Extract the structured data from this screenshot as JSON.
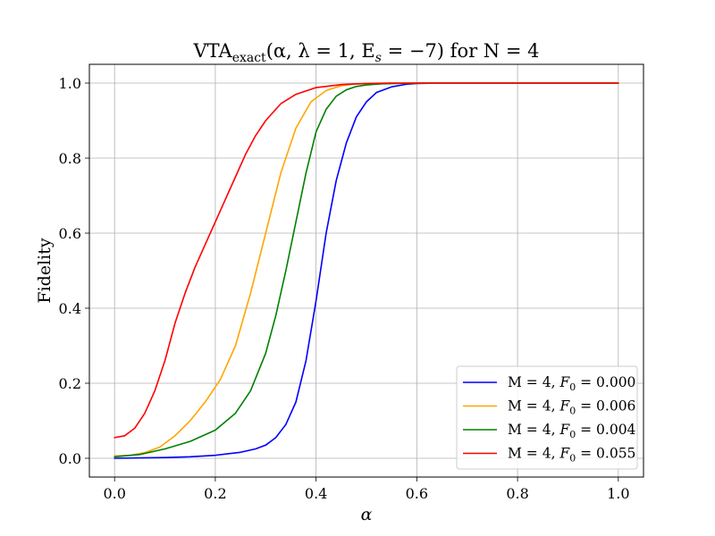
{
  "chart_data": {
    "type": "line",
    "title": {
      "prefix": "VTA",
      "subscript": "exact",
      "params": "(α, λ = 1, E",
      "params_sub": "s",
      "params_end": " = −7) for N = 4"
    },
    "xlabel": "α",
    "ylabel": "Fidelity",
    "xlim": [
      -0.05,
      1.05
    ],
    "ylim": [
      -0.05,
      1.05
    ],
    "xticks": [
      0.0,
      0.2,
      0.4,
      0.6,
      0.8,
      1.0
    ],
    "xtick_labels": [
      "0.0",
      "0.2",
      "0.4",
      "0.6",
      "0.8",
      "1.0"
    ],
    "yticks": [
      0.0,
      0.2,
      0.4,
      0.6,
      0.8,
      1.0
    ],
    "ytick_labels": [
      "0.0",
      "0.2",
      "0.4",
      "0.6",
      "0.8",
      "1.0"
    ],
    "grid": true,
    "legend_position": "lower-right",
    "series": [
      {
        "name": "M =  4, F₀ = 0.000",
        "legend_prefix": "M =  4, ",
        "legend_value": " = 0.000",
        "color": "#0000ff",
        "x": [
          0.0,
          0.05,
          0.1,
          0.15,
          0.2,
          0.25,
          0.28,
          0.3,
          0.32,
          0.34,
          0.36,
          0.38,
          0.4,
          0.42,
          0.44,
          0.46,
          0.48,
          0.5,
          0.52,
          0.55,
          0.58,
          0.6,
          0.65,
          0.7,
          0.8,
          1.0
        ],
        "y": [
          0.0,
          0.001,
          0.002,
          0.004,
          0.008,
          0.016,
          0.025,
          0.035,
          0.055,
          0.09,
          0.15,
          0.26,
          0.42,
          0.6,
          0.74,
          0.84,
          0.91,
          0.95,
          0.975,
          0.99,
          0.997,
          0.999,
          1.0,
          1.0,
          1.0,
          1.0
        ]
      },
      {
        "name": "M =  4, F₀ = 0.006",
        "legend_prefix": "M =  4, ",
        "legend_value": " = 0.006",
        "color": "#ffa500",
        "x": [
          0.0,
          0.03,
          0.06,
          0.09,
          0.12,
          0.15,
          0.18,
          0.21,
          0.24,
          0.27,
          0.3,
          0.33,
          0.36,
          0.39,
          0.42,
          0.45,
          0.48,
          0.51,
          0.55,
          0.6,
          0.7,
          0.8,
          1.0
        ],
        "y": [
          0.006,
          0.008,
          0.015,
          0.03,
          0.06,
          0.1,
          0.15,
          0.21,
          0.3,
          0.44,
          0.6,
          0.76,
          0.88,
          0.95,
          0.98,
          0.993,
          0.998,
          0.999,
          1.0,
          1.0,
          1.0,
          1.0,
          1.0
        ]
      },
      {
        "name": "M =  4, F₀ = 0.004",
        "legend_prefix": "M =  4, ",
        "legend_value": " = 0.004",
        "color": "#008000",
        "x": [
          0.0,
          0.05,
          0.1,
          0.15,
          0.2,
          0.24,
          0.27,
          0.3,
          0.32,
          0.34,
          0.36,
          0.38,
          0.4,
          0.42,
          0.44,
          0.46,
          0.48,
          0.5,
          0.53,
          0.56,
          0.6,
          0.65,
          0.7,
          0.8,
          1.0
        ],
        "y": [
          0.004,
          0.01,
          0.025,
          0.045,
          0.075,
          0.12,
          0.18,
          0.28,
          0.38,
          0.5,
          0.63,
          0.76,
          0.87,
          0.93,
          0.965,
          0.982,
          0.991,
          0.995,
          0.998,
          0.999,
          1.0,
          1.0,
          1.0,
          1.0,
          1.0
        ]
      },
      {
        "name": "M =  4, F₀ = 0.055",
        "legend_prefix": "M =  4, ",
        "legend_value": " = 0.055",
        "color": "#ff0000",
        "x": [
          0.0,
          0.02,
          0.04,
          0.06,
          0.08,
          0.1,
          0.12,
          0.14,
          0.16,
          0.18,
          0.2,
          0.22,
          0.24,
          0.26,
          0.28,
          0.3,
          0.33,
          0.36,
          0.4,
          0.45,
          0.5,
          0.55,
          0.6,
          0.7,
          0.8,
          1.0
        ],
        "y": [
          0.055,
          0.06,
          0.08,
          0.12,
          0.18,
          0.26,
          0.36,
          0.44,
          0.51,
          0.57,
          0.63,
          0.69,
          0.75,
          0.81,
          0.86,
          0.9,
          0.945,
          0.97,
          0.988,
          0.996,
          0.999,
          1.0,
          1.0,
          1.0,
          1.0,
          1.0
        ]
      }
    ]
  }
}
